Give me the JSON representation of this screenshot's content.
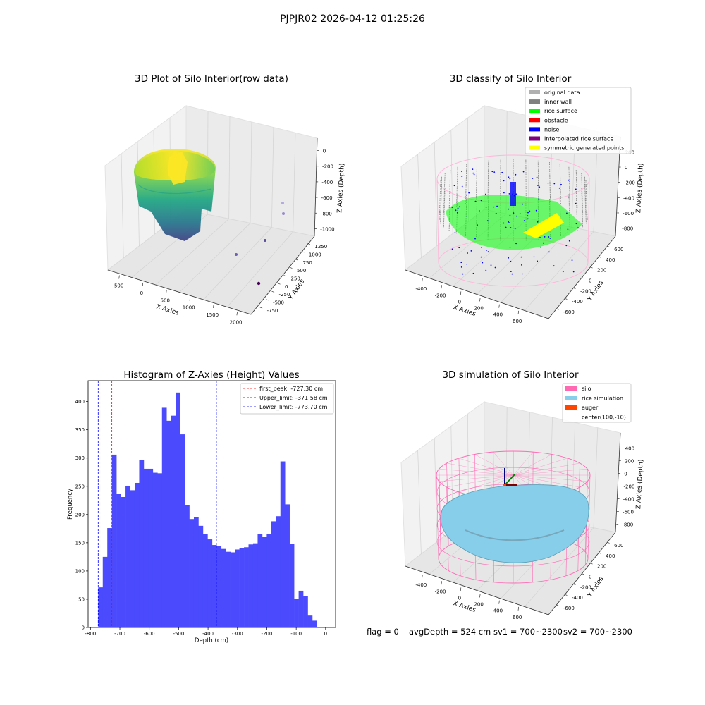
{
  "figure": {
    "suptitle": "PJPJR02 2026-04-12 01:25:26",
    "footer": {
      "flag": "flag = 0",
      "avg_depth": "avgDepth = 524 cm",
      "sv1": "sv1 = 700~2300",
      "sv2": "sv2 = 700~2300"
    }
  },
  "colors": {
    "hist_bar": "#4b4bfd",
    "first_peak_line": "#ff0000",
    "limit_line": "#0000ff",
    "pane": "#f2f2f2",
    "grid": "#cccccc",
    "silo": "#ff69b4",
    "rice_simulation": "#87ceeb",
    "auger": "#ff4500",
    "rice_surface": "#00ff00",
    "noise": "#0000ff",
    "interpolated_rice_surface": "#800080",
    "symmetric_generated_points": "#ffff00",
    "original_data": "#b0b0b0",
    "inner_wall": "#808080",
    "obstacle": "#ff0000"
  },
  "chart_data": [
    {
      "id": "raw",
      "type": "scatter",
      "projection": "3d",
      "title": "3D Plot of Silo Interior(row data)",
      "xlabel": "X Axies",
      "ylabel": "Y Axies",
      "zlabel": "Z Axies (Depth)",
      "x_ticks": [
        "-500",
        "0",
        "500",
        "1000",
        "1500",
        "2000"
      ],
      "y_ticks": [
        "-750",
        "-500",
        "-250",
        "0",
        "250",
        "500",
        "750",
        "1000",
        "1250"
      ],
      "z_ticks": [
        "-1000",
        "-800",
        "-600",
        "-400",
        "-200",
        "0"
      ],
      "xlim": [
        -700,
        2100
      ],
      "ylim": [
        -800,
        1350
      ],
      "zlim": [
        -1050,
        50
      ],
      "colormap": "viridis",
      "grid": true
    },
    {
      "id": "classify",
      "type": "scatter",
      "projection": "3d",
      "title": "3D classify of Silo Interior",
      "xlabel": "X Axies",
      "ylabel": "Y Axies",
      "zlabel": "Z Axies (Depth)",
      "x_ticks": [
        "-400",
        "-200",
        "0",
        "200",
        "400",
        "600"
      ],
      "y_ticks": [
        "-600",
        "-400",
        "-200",
        "0",
        "200",
        "400",
        "600"
      ],
      "z_ticks": [
        "-800",
        "-600",
        "-400",
        "-200",
        "0",
        "200"
      ],
      "legend": {
        "placement": "top-right",
        "entries": [
          {
            "label": "original data",
            "color": "#b0b0b0"
          },
          {
            "label": "inner wall",
            "color": "#808080"
          },
          {
            "label": "rice surface",
            "color": "#00ff00"
          },
          {
            "label": "obstacle",
            "color": "#ff0000"
          },
          {
            "label": "noise",
            "color": "#0000ff"
          },
          {
            "label": "interpolated rice surface",
            "color": "#800080"
          },
          {
            "label": "symmetric generated points",
            "color": "#ffff00"
          }
        ]
      },
      "grid": true
    },
    {
      "id": "histogram",
      "type": "bar",
      "title": "Histogram of Z-Axies (Height) Values",
      "xlabel": "Depth (cm)",
      "ylabel": "Frequency",
      "xlim": [
        -808,
        34
      ],
      "ylim": [
        0,
        437
      ],
      "x_ticks": [
        -800,
        -700,
        -600,
        -500,
        -400,
        -300,
        -200,
        -100,
        0
      ],
      "y_ticks": [
        0,
        50,
        100,
        150,
        200,
        250,
        300,
        350,
        400
      ],
      "bin_start": -773.7,
      "bin_width": 15.5,
      "values": [
        71,
        125,
        176,
        306,
        237,
        231,
        251,
        243,
        256,
        296,
        281,
        281,
        274,
        273,
        389,
        366,
        375,
        416,
        342,
        216,
        192,
        195,
        180,
        165,
        156,
        146,
        144,
        139,
        134,
        133,
        138,
        141,
        142,
        147,
        149,
        165,
        161,
        166,
        188,
        197,
        294,
        218,
        148,
        50,
        65,
        55,
        21,
        12
      ],
      "vlines": [
        {
          "label": "first_peak: -727.30 cm",
          "x": -727.3,
          "color": "#ff0000"
        },
        {
          "label": "Upper_limit: -371.58 cm",
          "x": -371.58,
          "color": "#0000ff"
        },
        {
          "label": "Lower_limit: -773.70 cm",
          "x": -773.7,
          "color": "#0000ff"
        }
      ],
      "legend": {
        "placement": "top-right"
      },
      "grid": false
    },
    {
      "id": "simulation",
      "type": "surface",
      "projection": "3d",
      "title": "3D simulation of Silo Interior",
      "xlabel": "X Axies",
      "ylabel": "Y Axies",
      "zlabel": "Z Axies (Depth)",
      "x_ticks": [
        "-400",
        "-200",
        "0",
        "200",
        "400",
        "600"
      ],
      "y_ticks": [
        "-600",
        "-400",
        "-200",
        "0",
        "200",
        "400",
        "600"
      ],
      "z_ticks": [
        "-800",
        "-600",
        "-400",
        "-200",
        "0",
        "200",
        "400"
      ],
      "legend": {
        "placement": "top-right",
        "entries": [
          {
            "label": "silo",
            "color": "#ff69b4"
          },
          {
            "label": "rice simulation",
            "color": "#87ceeb"
          },
          {
            "label": "auger",
            "color": "#ff4500"
          },
          {
            "label": "center(100,-10)",
            "color": ""
          }
        ]
      },
      "grid": true
    }
  ]
}
